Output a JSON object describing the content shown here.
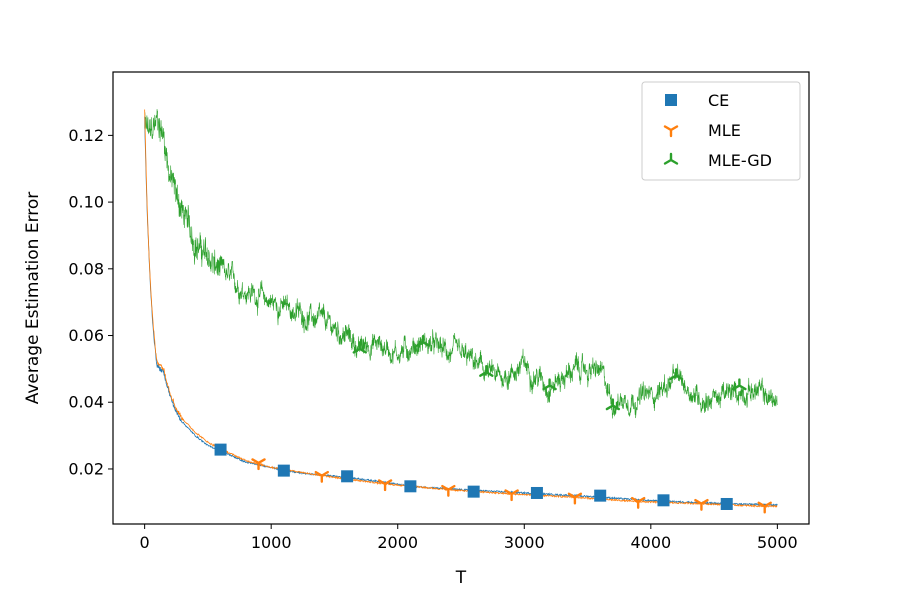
{
  "chart_data": {
    "type": "line",
    "title": "",
    "xlabel": "T",
    "ylabel": "Average Estimation Error",
    "xlim": [
      -250,
      5250
    ],
    "ylim": [
      0.0035,
      0.139
    ],
    "xticks": [
      0,
      1000,
      2000,
      3000,
      4000,
      5000
    ],
    "xtick_labels": [
      "0",
      "1000",
      "2000",
      "3000",
      "4000",
      "5000"
    ],
    "yticks": [
      0.02,
      0.04,
      0.06,
      0.08,
      0.1,
      0.12
    ],
    "ytick_labels": [
      "0.02",
      "0.04",
      "0.06",
      "0.08",
      "0.10",
      "0.12"
    ],
    "legend_position": "top-right",
    "series": [
      {
        "name": "CE",
        "color": "#1f77b4",
        "marker": "square",
        "curve": [
          [
            0,
            0.125
          ],
          [
            10,
            0.11
          ],
          [
            20,
            0.097
          ],
          [
            30,
            0.088
          ],
          [
            40,
            0.079
          ],
          [
            50,
            0.072
          ],
          [
            60,
            0.066
          ],
          [
            70,
            0.061
          ],
          [
            80,
            0.057
          ],
          [
            90,
            0.053
          ],
          [
            100,
            0.051
          ],
          [
            120,
            0.05
          ],
          [
            150,
            0.049
          ],
          [
            200,
            0.042
          ],
          [
            250,
            0.037
          ],
          [
            300,
            0.034
          ],
          [
            400,
            0.03
          ],
          [
            500,
            0.027
          ],
          [
            600,
            0.0255
          ],
          [
            800,
            0.022
          ],
          [
            1000,
            0.0205
          ],
          [
            1100,
            0.0195
          ],
          [
            1300,
            0.0185
          ],
          [
            1600,
            0.0175
          ],
          [
            1900,
            0.016
          ],
          [
            2100,
            0.0148
          ],
          [
            2500,
            0.0138
          ],
          [
            3000,
            0.0128
          ],
          [
            3500,
            0.0118
          ],
          [
            4000,
            0.0105
          ],
          [
            4500,
            0.0097
          ],
          [
            5000,
            0.0092
          ]
        ],
        "markers_x": [
          600,
          1100,
          1600,
          2100,
          2600,
          3100,
          3600,
          4100,
          4600
        ],
        "markers_y": [
          0.0258,
          0.0195,
          0.0178,
          0.0148,
          0.0132,
          0.0128,
          0.012,
          0.0106,
          0.0095
        ]
      },
      {
        "name": "MLE",
        "color": "#ff7f0e",
        "marker": "tri_down",
        "curve": [
          [
            0,
            0.128
          ],
          [
            10,
            0.112
          ],
          [
            20,
            0.099
          ],
          [
            30,
            0.089
          ],
          [
            40,
            0.08
          ],
          [
            50,
            0.073
          ],
          [
            60,
            0.067
          ],
          [
            70,
            0.062
          ],
          [
            80,
            0.058
          ],
          [
            90,
            0.054
          ],
          [
            100,
            0.052
          ],
          [
            120,
            0.0515
          ],
          [
            150,
            0.05
          ],
          [
            200,
            0.043
          ],
          [
            250,
            0.038
          ],
          [
            300,
            0.035
          ],
          [
            400,
            0.031
          ],
          [
            500,
            0.028
          ],
          [
            600,
            0.026
          ],
          [
            800,
            0.0225
          ],
          [
            900,
            0.0215
          ],
          [
            1000,
            0.0205
          ],
          [
            1400,
            0.018
          ],
          [
            1900,
            0.0155
          ],
          [
            2400,
            0.0138
          ],
          [
            2900,
            0.0125
          ],
          [
            3400,
            0.0115
          ],
          [
            3900,
            0.0102
          ],
          [
            4400,
            0.0096
          ],
          [
            4900,
            0.0088
          ],
          [
            5000,
            0.0088
          ]
        ],
        "markers_x": [
          900,
          1400,
          1900,
          2400,
          2900,
          3400,
          3900,
          4400,
          4900
        ],
        "markers_y": [
          0.0218,
          0.018,
          0.0155,
          0.0138,
          0.0125,
          0.0115,
          0.0102,
          0.0096,
          0.0088
        ]
      },
      {
        "name": "MLE-GD",
        "color": "#2ca02c",
        "marker": "tri_up",
        "curve": [
          [
            0,
            0.123
          ],
          [
            50,
            0.12
          ],
          [
            100,
            0.125
          ],
          [
            150,
            0.12
          ],
          [
            200,
            0.108
          ],
          [
            300,
            0.097
          ],
          [
            400,
            0.088
          ],
          [
            500,
            0.083
          ],
          [
            600,
            0.079
          ],
          [
            700,
            0.076
          ],
          [
            800,
            0.074
          ],
          [
            900,
            0.072
          ],
          [
            1000,
            0.07
          ],
          [
            1200,
            0.067
          ],
          [
            1400,
            0.064
          ],
          [
            1600,
            0.06
          ],
          [
            1700,
            0.056
          ],
          [
            1800,
            0.058
          ],
          [
            2000,
            0.055
          ],
          [
            2200,
            0.058
          ],
          [
            2400,
            0.055
          ],
          [
            2600,
            0.052
          ],
          [
            2700,
            0.049
          ],
          [
            2800,
            0.047
          ],
          [
            3000,
            0.051
          ],
          [
            3200,
            0.045
          ],
          [
            3400,
            0.05
          ],
          [
            3600,
            0.049
          ],
          [
            3700,
            0.04
          ],
          [
            3800,
            0.041
          ],
          [
            4000,
            0.042
          ],
          [
            4200,
            0.047
          ],
          [
            4400,
            0.041
          ],
          [
            4600,
            0.042
          ],
          [
            4700,
            0.043
          ],
          [
            4800,
            0.044
          ],
          [
            5000,
            0.04
          ]
        ],
        "markers_x": [
          1700,
          2200,
          2700,
          3200,
          3700,
          4200,
          4700
        ],
        "markers_y": [
          0.056,
          0.058,
          0.049,
          0.045,
          0.039,
          0.048,
          0.045
        ]
      }
    ]
  }
}
